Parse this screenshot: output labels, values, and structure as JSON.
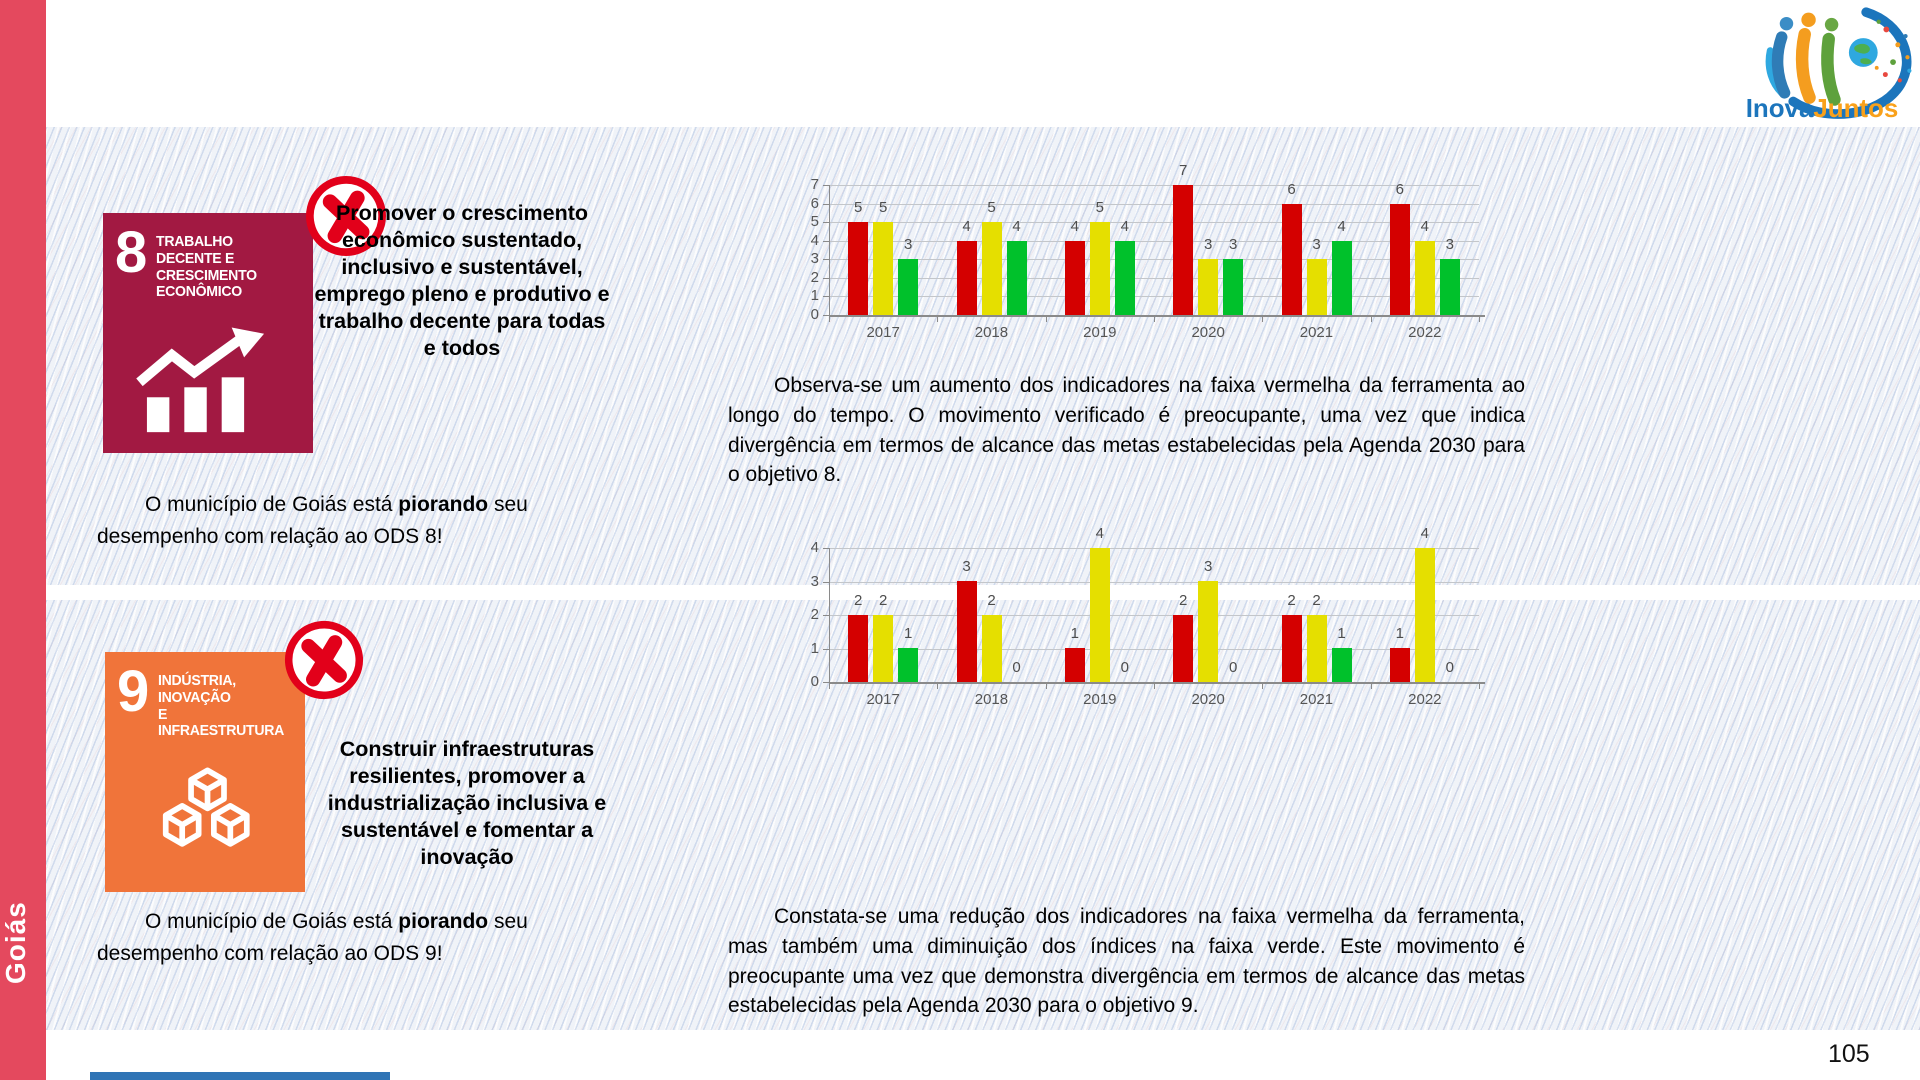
{
  "page": {
    "number": "105",
    "region_label": "Goiás"
  },
  "logo": {
    "text_primary": "Inova",
    "text_secondary": "Juntos"
  },
  "colors": {
    "sdg8": "#A21942",
    "sdg9": "#F0743A",
    "bar_red": "#D40000",
    "bar_yellow": "#E5DF00",
    "bar_green": "#00C12B",
    "sidebar_red": "#E4495E",
    "footer_blue": "#2F74B5",
    "badge_red": "#E2001A",
    "logo_blue": "#1C75BC",
    "logo_orange": "#F9A11B"
  },
  "sections": [
    {
      "goal_number": "8",
      "goal_title_lines": [
        "TRABALHO DECENTE E",
        "CRESCIMENTO",
        "ECONÔMICO"
      ],
      "objective_lines": [
        "Promover o crescimento",
        "econômico sustentado,",
        "inclusivo e sustentável,",
        "emprego pleno e produtivo e",
        "trabalho decente para todas",
        "e todos"
      ],
      "statement_prefix": "O município de Goiás está ",
      "statement_bold": "piorando",
      "statement_suffix": " seu desempenho com relação ao ODS 8!",
      "analysis": "Observa-se um aumento dos indicadores na faixa vermelha da ferramenta ao longo do tempo. O movimento verificado é preocupante, uma vez que indica divergência em termos de alcance das metas estabelecidas pela Agenda 2030 para o objetivo 8."
    },
    {
      "goal_number": "9",
      "goal_title_lines": [
        "INDÚSTRIA, INOVAÇÃO",
        "E INFRAESTRUTURA"
      ],
      "objective_lines": [
        "Construir infraestruturas",
        "resilientes, promover a",
        "industrialização inclusiva e",
        "sustentável e fomentar a",
        "inovação"
      ],
      "statement_prefix": "O município de Goiás está ",
      "statement_bold": "piorando",
      "statement_suffix": " seu desempenho com relação ao ODS 9!",
      "analysis": "Constata-se uma redução dos indicadores na faixa vermelha da ferramenta, mas também uma diminuição dos índices na faixa verde. Este movimento é preocupante uma vez que demonstra divergência em termos de alcance das metas estabelecidas pela Agenda 2030 para o objetivo 9."
    }
  ],
  "chart_data": [
    {
      "type": "bar",
      "categories": [
        "2017",
        "2018",
        "2019",
        "2020",
        "2021",
        "2022"
      ],
      "series": [
        {
          "name": "faixa vermelha",
          "color": "#D40000",
          "values": [
            5,
            4,
            4,
            7,
            6,
            6
          ]
        },
        {
          "name": "faixa amarela",
          "color": "#E5DF00",
          "values": [
            5,
            5,
            5,
            3,
            3,
            4
          ]
        },
        {
          "name": "faixa verde",
          "color": "#00C12B",
          "values": [
            3,
            4,
            4,
            3,
            4,
            3
          ]
        }
      ],
      "ylim": [
        0,
        7
      ],
      "yticks": [
        0,
        1,
        2,
        3,
        4,
        5,
        6,
        7
      ],
      "grid": true,
      "legend_position": "none",
      "value_labels": true
    },
    {
      "type": "bar",
      "categories": [
        "2017",
        "2018",
        "2019",
        "2020",
        "2021",
        "2022"
      ],
      "series": [
        {
          "name": "faixa vermelha",
          "color": "#D40000",
          "values": [
            2,
            3,
            1,
            2,
            2,
            1
          ]
        },
        {
          "name": "faixa amarela",
          "color": "#E5DF00",
          "values": [
            2,
            2,
            4,
            3,
            2,
            4
          ]
        },
        {
          "name": "faixa verde",
          "color": "#00C12B",
          "values": [
            1,
            0,
            0,
            0,
            1,
            0
          ]
        }
      ],
      "ylim": [
        0,
        4
      ],
      "yticks": [
        0,
        1,
        2,
        3,
        4
      ],
      "grid": true,
      "legend_position": "none",
      "value_labels": true
    }
  ]
}
